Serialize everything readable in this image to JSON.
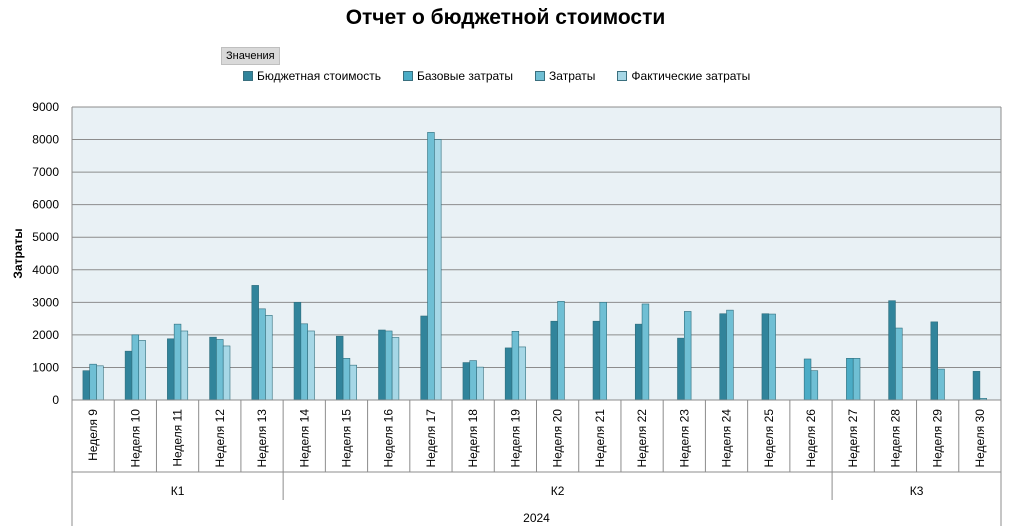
{
  "title": "Отчет о бюджетной стоимости",
  "field_button": "Значения",
  "chart_data": {
    "type": "bar",
    "title": "Отчет о бюджетной стоимости",
    "ylabel": "Затраты",
    "ylim": [
      0,
      9000
    ],
    "yticks": [
      0,
      1000,
      2000,
      3000,
      4000,
      5000,
      6000,
      7000,
      8000,
      9000
    ],
    "grid": true,
    "legend_position": "top",
    "categories": [
      "Неделя 9",
      "Неделя 10",
      "Неделя 11",
      "Неделя 12",
      "Неделя 13",
      "Неделя 14",
      "Неделя 15",
      "Неделя 16",
      "Неделя 17",
      "Неделя 18",
      "Неделя 19",
      "Неделя 20",
      "Неделя 21",
      "Неделя 22",
      "Неделя 23",
      "Неделя 24",
      "Неделя 25",
      "Неделя 26",
      "Неделя 27",
      "Неделя 28",
      "Неделя 29",
      "Неделя 30"
    ],
    "quarters": [
      {
        "label": "К1",
        "count": 5
      },
      {
        "label": "К2",
        "count": 13
      },
      {
        "label": "К3",
        "count": 4
      }
    ],
    "year": "2024",
    "series": [
      {
        "name": "Бюджетная стоимость",
        "color": "#31849b",
        "values": [
          900,
          1500,
          1880,
          1930,
          3520,
          3000,
          1960,
          2150,
          2580,
          1150,
          1600,
          2420,
          2420,
          2330,
          1900,
          2650,
          2650,
          null,
          null,
          3050,
          2400,
          880
        ]
      },
      {
        "name": "Базовые затраты",
        "color": "#4bacc6",
        "values": [
          null,
          null,
          null,
          null,
          null,
          null,
          null,
          null,
          null,
          null,
          null,
          null,
          null,
          null,
          null,
          null,
          null,
          1260,
          1280,
          null,
          null,
          null
        ]
      },
      {
        "name": "Затраты",
        "color": "#6fbfd4",
        "values": [
          1100,
          2000,
          2330,
          1860,
          2800,
          2340,
          1280,
          2120,
          8220,
          1210,
          2110,
          3030,
          3000,
          2950,
          2720,
          2760,
          2640,
          900,
          1280,
          2210,
          950,
          50
        ]
      },
      {
        "name": "Фактические затраты",
        "color": "#a6d7e6",
        "values": [
          1050,
          1830,
          2120,
          1660,
          2600,
          2120,
          1070,
          1920,
          8000,
          1010,
          1630,
          null,
          null,
          null,
          null,
          null,
          null,
          null,
          null,
          null,
          null,
          null
        ]
      }
    ]
  }
}
